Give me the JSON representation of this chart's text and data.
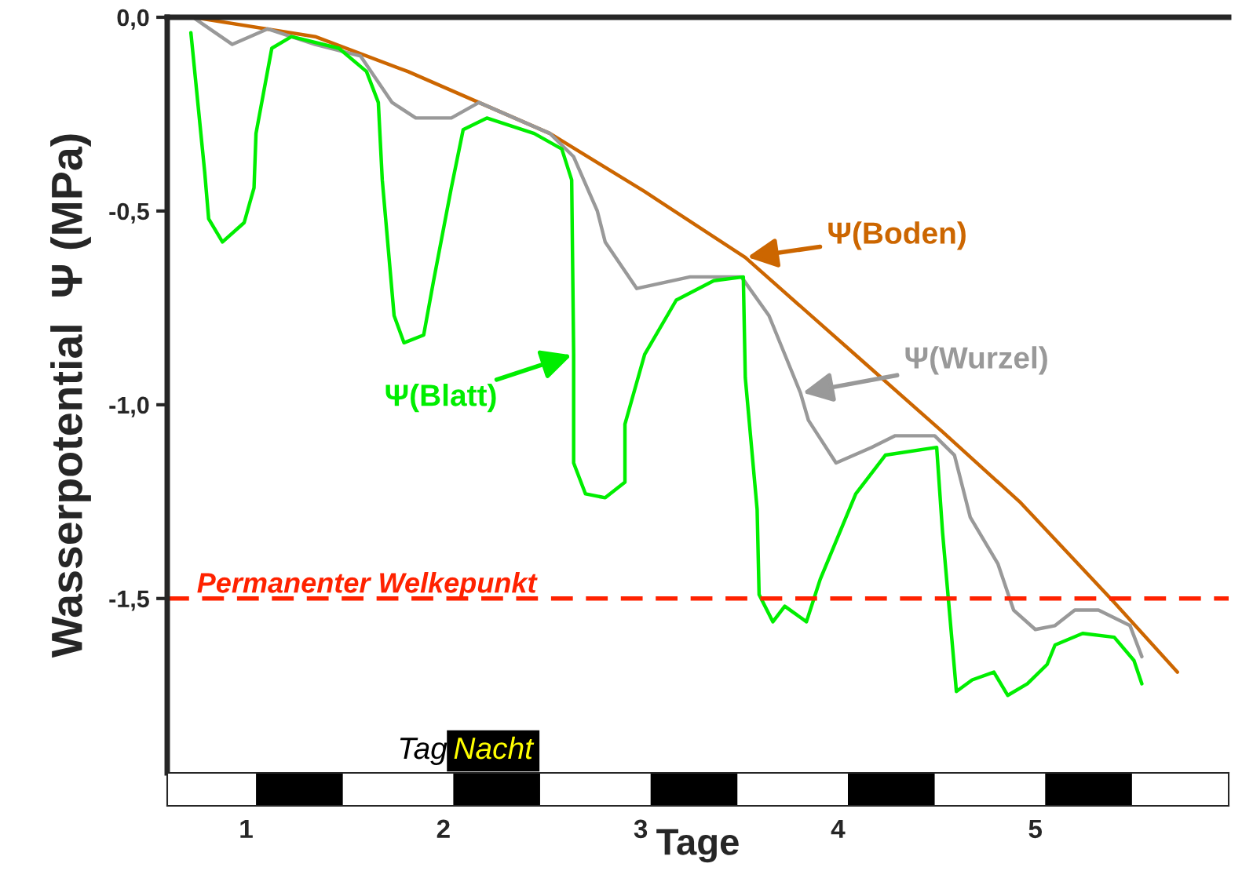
{
  "chart_data": {
    "type": "line",
    "xlabel": "Tage",
    "ylabel": "Wasserpotential  Ψ (MPa)",
    "xlim": [
      0.6,
      5.98
    ],
    "xticks": [
      1,
      2,
      3,
      4,
      5
    ],
    "ylim": [
      -1.95,
      0.0
    ],
    "yticks": [
      {
        "value": 0,
        "label": "0,0"
      },
      {
        "value": -0.5,
        "label": "-0,5"
      },
      {
        "value": -1.0,
        "label": "-1,0"
      },
      {
        "value": -1.5,
        "label": "-1,5"
      }
    ],
    "grid": false,
    "line_style": "solid",
    "marker": "none",
    "series": [
      {
        "name": "Ψ(Boden)",
        "color": "#cc6600",
        "x": [
          0.73,
          1.35,
          1.82,
          2.54,
          3.02,
          3.53,
          4.13,
          4.53,
          4.92,
          5.4,
          5.72
        ],
        "values": [
          0.0,
          -0.05,
          -0.14,
          -0.3,
          -0.45,
          -0.62,
          -0.89,
          -1.07,
          -1.25,
          -1.51,
          -1.69
        ]
      },
      {
        "name": "Ψ(Wurzel)",
        "color": "#999999",
        "x": [
          0.73,
          0.93,
          1.11,
          1.35,
          1.58,
          1.74,
          1.86,
          2.04,
          2.18,
          2.54,
          2.66,
          2.78,
          2.82,
          2.98,
          3.25,
          3.51,
          3.65,
          3.81,
          3.85,
          3.99,
          4.17,
          4.29,
          4.49,
          4.59,
          4.67,
          4.81,
          4.89,
          5.0,
          5.1,
          5.2,
          5.32,
          5.48,
          5.54
        ],
        "values": [
          0.0,
          -0.07,
          -0.03,
          -0.07,
          -0.1,
          -0.22,
          -0.26,
          -0.26,
          -0.22,
          -0.3,
          -0.36,
          -0.5,
          -0.58,
          -0.7,
          -0.67,
          -0.67,
          -0.77,
          -0.97,
          -1.04,
          -1.15,
          -1.11,
          -1.08,
          -1.08,
          -1.13,
          -1.29,
          -1.41,
          -1.53,
          -1.58,
          -1.57,
          -1.53,
          -1.53,
          -1.57,
          -1.65
        ]
      },
      {
        "name": "Ψ(Blatt)",
        "color": "#00ee00",
        "x": [
          0.72,
          0.79,
          0.81,
          0.88,
          0.99,
          1.04,
          1.05,
          1.13,
          1.23,
          1.47,
          1.61,
          1.67,
          1.69,
          1.75,
          1.8,
          1.9,
          1.95,
          2.04,
          2.1,
          2.22,
          2.46,
          2.6,
          2.65,
          2.66,
          2.66,
          2.72,
          2.82,
          2.92,
          2.92,
          3.02,
          3.18,
          3.37,
          3.52,
          3.53,
          3.59,
          3.6,
          3.67,
          3.73,
          3.84,
          3.91,
          4.09,
          4.24,
          4.5,
          4.53,
          4.6,
          4.68,
          4.79,
          4.86,
          4.96,
          5.06,
          5.1,
          5.24,
          5.4,
          5.5,
          5.54
        ],
        "values": [
          -0.04,
          -0.4,
          -0.52,
          -0.58,
          -0.53,
          -0.44,
          -0.3,
          -0.08,
          -0.05,
          -0.08,
          -0.14,
          -0.22,
          -0.42,
          -0.77,
          -0.84,
          -0.82,
          -0.68,
          -0.44,
          -0.29,
          -0.26,
          -0.3,
          -0.34,
          -0.42,
          -0.87,
          -1.15,
          -1.23,
          -1.24,
          -1.2,
          -1.05,
          -0.87,
          -0.73,
          -0.68,
          -0.67,
          -0.93,
          -1.27,
          -1.49,
          -1.56,
          -1.52,
          -1.56,
          -1.45,
          -1.23,
          -1.13,
          -1.11,
          -1.33,
          -1.74,
          -1.71,
          -1.69,
          -1.75,
          -1.72,
          -1.67,
          -1.62,
          -1.59,
          -1.6,
          -1.66,
          -1.72
        ]
      }
    ],
    "ref_lines": [
      {
        "axis": "y",
        "value": -1.5,
        "label": "Permanenter Welkepunkt",
        "color": "#ff2200",
        "line_style": "dashed"
      }
    ],
    "annotations": [
      "Tag",
      "Nacht"
    ]
  }
}
